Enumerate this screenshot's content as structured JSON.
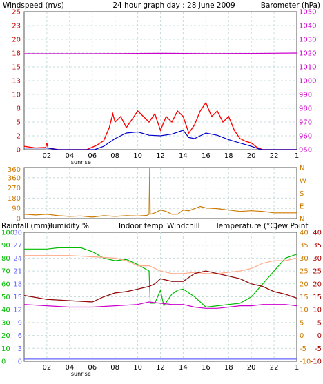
{
  "colors": {
    "wind": "#ff0000",
    "wind_avg": "#0000cc",
    "baro": "#cc00cc",
    "dir": "#cc7a00",
    "rain": "#6666ff",
    "humidity": "#00bb00",
    "indoor": "#ffaa88",
    "windchill": "#00cccc",
    "temp": "#aa0000",
    "dew": "#cc00cc",
    "grid": "#c8dcdc",
    "frame": "#555555",
    "left_axis": "#cc0000",
    "right_axis": "#cc00cc",
    "temp_axis": "#aa0000",
    "dir_axis": "#cc7a00"
  },
  "header": {
    "wind_label": "Windspeed (m/s)",
    "title": "24 hour graph day : 28 June 2009",
    "baro_label": "Barometer (hPa)"
  },
  "x_labels": [
    "02",
    "04",
    "06",
    "08",
    "10",
    "12",
    "14",
    "16",
    "18",
    "20",
    "22",
    "1"
  ],
  "sunrise_label": "sunrise",
  "panel_top": {
    "wind_ticks": [
      "0",
      "2",
      "5",
      "8",
      "10",
      "13",
      "15",
      "18",
      "20",
      "23",
      "25"
    ],
    "baro_ticks": [
      "950",
      "960",
      "970",
      "980",
      "990",
      "1000",
      "1010",
      "1020",
      "1030",
      "1040",
      "1050"
    ]
  },
  "panel_mid": {
    "left_ticks": [
      "0",
      "90",
      "180",
      "270",
      "360",
      "360"
    ],
    "dir_letters": [
      "N",
      "W",
      "S",
      "E",
      "N"
    ]
  },
  "panel_bot": {
    "legend": {
      "rainfall": "Rainfall (mm)",
      "humidity": "Humidity %",
      "indoor": "Indoor temp",
      "windchill": "Windchill",
      "temperature": "Temperature (°C)",
      "dewpoint": "Dew Point"
    },
    "rain_ticks": [
      "0",
      "3",
      "6",
      "9",
      "12",
      "15",
      "18",
      "21",
      "24",
      "27",
      "30"
    ],
    "hum_ticks": [
      "0",
      "10",
      "20",
      "30",
      "40",
      "50",
      "60",
      "70",
      "80",
      "90",
      "100"
    ],
    "temp_ticks": [
      "-10",
      "-5",
      "0",
      "5",
      "10",
      "15",
      "20",
      "25",
      "30",
      "35",
      "40"
    ]
  },
  "chart_data": [
    {
      "type": "line",
      "title": "24 hour graph day : 28 June 2009",
      "x_unit": "hour",
      "xlim": [
        0,
        24
      ],
      "y_left": {
        "label": "Windspeed (m/s)",
        "range": [
          0,
          25
        ]
      },
      "y_right": {
        "label": "Barometer (hPa)",
        "range": [
          950,
          1050
        ]
      },
      "series": [
        {
          "name": "Barometer (hPa)",
          "axis": "right",
          "points": [
            [
              0,
              1019.5
            ],
            [
              4,
              1019.5
            ],
            [
              8,
              1019.6
            ],
            [
              12,
              1019.8
            ],
            [
              16,
              1019.6
            ],
            [
              20,
              1019.7
            ],
            [
              24,
              1020
            ]
          ]
        },
        {
          "name": "Windspeed (m/s)",
          "axis": "left",
          "points": [
            [
              0,
              0.6
            ],
            [
              1,
              0.3
            ],
            [
              1.9,
              0.4
            ],
            [
              2,
              1.2
            ],
            [
              2.1,
              0.3
            ],
            [
              3,
              0
            ],
            [
              5.5,
              0
            ],
            [
              6.4,
              0.8
            ],
            [
              7,
              1.6
            ],
            [
              7.5,
              4
            ],
            [
              7.8,
              6.5
            ],
            [
              8,
              5
            ],
            [
              8.5,
              6
            ],
            [
              9,
              4
            ],
            [
              9.5,
              5.5
            ],
            [
              10,
              7
            ],
            [
              10.5,
              6
            ],
            [
              11,
              5
            ],
            [
              11.5,
              6.5
            ],
            [
              12,
              3.5
            ],
            [
              12.5,
              6
            ],
            [
              13,
              5
            ],
            [
              13.5,
              7
            ],
            [
              14,
              6
            ],
            [
              14.5,
              3
            ],
            [
              15,
              4.5
            ],
            [
              15.5,
              7
            ],
            [
              16,
              8.5
            ],
            [
              16.5,
              6
            ],
            [
              17,
              7
            ],
            [
              17.5,
              5
            ],
            [
              18,
              6
            ],
            [
              18.5,
              3.5
            ],
            [
              19,
              2
            ],
            [
              19.5,
              1.5
            ],
            [
              20,
              1.2
            ],
            [
              20.5,
              0.4
            ],
            [
              21,
              0
            ],
            [
              24,
              0
            ]
          ]
        },
        {
          "name": "Wind average (m/s)",
          "axis": "left",
          "points": [
            [
              0,
              0.3
            ],
            [
              2,
              0.3
            ],
            [
              3,
              0
            ],
            [
              6.2,
              0
            ],
            [
              7,
              0.6
            ],
            [
              8,
              2
            ],
            [
              9,
              3
            ],
            [
              10,
              3.2
            ],
            [
              11,
              2.6
            ],
            [
              12,
              2.5
            ],
            [
              13,
              2.8
            ],
            [
              14,
              3.5
            ],
            [
              14.5,
              2.2
            ],
            [
              15,
              2
            ],
            [
              16,
              3
            ],
            [
              17,
              2.6
            ],
            [
              18,
              1.8
            ],
            [
              19,
              1.2
            ],
            [
              20,
              0.6
            ],
            [
              20.7,
              0.1
            ],
            [
              21,
              0
            ],
            [
              24,
              0
            ]
          ]
        }
      ]
    },
    {
      "type": "line",
      "x_unit": "hour",
      "xlim": [
        0,
        24
      ],
      "y_left": {
        "range": [
          0,
          360
        ]
      },
      "y_right": {
        "ticks": [
          "N",
          "W",
          "S",
          "E",
          "N"
        ]
      },
      "series": [
        {
          "name": "Wind direction (°)",
          "points": [
            [
              0,
              30
            ],
            [
              1,
              25
            ],
            [
              2,
              30
            ],
            [
              3,
              20
            ],
            [
              4,
              15
            ],
            [
              5,
              18
            ],
            [
              6,
              10
            ],
            [
              7,
              20
            ],
            [
              8,
              15
            ],
            [
              9,
              20
            ],
            [
              10,
              18
            ],
            [
              10.8,
              22
            ],
            [
              11,
              30
            ],
            [
              11.05,
              360
            ],
            [
              11.1,
              30
            ],
            [
              11.5,
              40
            ],
            [
              12,
              60
            ],
            [
              12.5,
              50
            ],
            [
              13,
              30
            ],
            [
              13.5,
              30
            ],
            [
              14,
              60
            ],
            [
              14.5,
              55
            ],
            [
              15,
              70
            ],
            [
              15.5,
              85
            ],
            [
              16,
              75
            ],
            [
              17,
              70
            ],
            [
              18,
              60
            ],
            [
              19,
              50
            ],
            [
              20,
              55
            ],
            [
              21,
              50
            ],
            [
              22,
              40
            ],
            [
              24,
              40
            ]
          ]
        }
      ]
    },
    {
      "type": "line",
      "x_unit": "hour",
      "xlim": [
        0,
        24
      ],
      "y_left_rain": {
        "label": "Rainfall (mm)",
        "range": [
          0,
          30
        ]
      },
      "y_left_humidity": {
        "label": "Humidity %",
        "range": [
          0,
          100
        ]
      },
      "y_right_temp": {
        "label": "Temperature (°C)",
        "range": [
          -10,
          40
        ]
      },
      "series": [
        {
          "name": "Rainfall (mm)",
          "axis": "rain",
          "points": [
            [
              0,
              0.5
            ],
            [
              24,
              0.5
            ]
          ]
        },
        {
          "name": "Humidity %",
          "axis": "humidity",
          "points": [
            [
              0,
              87
            ],
            [
              2,
              87
            ],
            [
              3,
              88
            ],
            [
              4,
              88
            ],
            [
              5,
              88
            ],
            [
              6,
              85
            ],
            [
              7,
              80
            ],
            [
              8,
              78
            ],
            [
              9,
              79
            ],
            [
              10,
              75
            ],
            [
              11,
              70
            ],
            [
              11.1,
              45
            ],
            [
              11.5,
              45
            ],
            [
              12,
              55
            ],
            [
              12.3,
              43
            ],
            [
              13,
              52
            ],
            [
              13.5,
              55
            ],
            [
              14,
              56
            ],
            [
              15,
              50
            ],
            [
              16,
              42
            ],
            [
              17,
              43
            ],
            [
              18,
              44
            ],
            [
              19,
              45
            ],
            [
              20,
              50
            ],
            [
              21,
              60
            ],
            [
              22,
              70
            ],
            [
              23,
              80
            ],
            [
              24,
              83
            ]
          ]
        },
        {
          "name": "Indoor temp",
          "axis": "temp",
          "points": [
            [
              0,
              31
            ],
            [
              2,
              31
            ],
            [
              4,
              31
            ],
            [
              6,
              30.5
            ],
            [
              8,
              30
            ],
            [
              9,
              29
            ],
            [
              10,
              27
            ],
            [
              11,
              27
            ],
            [
              12,
              25
            ],
            [
              13,
              24
            ],
            [
              14,
              24
            ],
            [
              15,
              24.5
            ],
            [
              16,
              24
            ],
            [
              17,
              24
            ],
            [
              18,
              24.5
            ],
            [
              19,
              25
            ],
            [
              20,
              26
            ],
            [
              21,
              28
            ],
            [
              22,
              29
            ],
            [
              23,
              29
            ],
            [
              24,
              30
            ]
          ]
        },
        {
          "name": "Windchill",
          "axis": "temp",
          "points": [
            [
              0,
              15.5
            ],
            [
              2,
              14
            ],
            [
              4,
              13.5
            ],
            [
              6,
              13
            ],
            [
              7,
              15
            ],
            [
              8,
              16.5
            ],
            [
              9,
              17
            ],
            [
              10,
              18
            ],
            [
              11,
              19
            ],
            [
              11.5,
              20
            ],
            [
              12,
              22
            ],
            [
              13,
              21
            ],
            [
              14,
              21
            ],
            [
              15,
              24
            ],
            [
              16,
              25
            ],
            [
              17,
              24
            ],
            [
              18,
              23
            ],
            [
              19,
              22
            ],
            [
              20,
              20
            ],
            [
              21,
              19
            ],
            [
              22,
              17
            ],
            [
              23,
              16
            ],
            [
              24,
              14.5
            ]
          ]
        },
        {
          "name": "Temperature (°C)",
          "axis": "temp",
          "points": [
            [
              0,
              15.5
            ],
            [
              2,
              14
            ],
            [
              4,
              13.5
            ],
            [
              6,
              13
            ],
            [
              7,
              15
            ],
            [
              8,
              16.5
            ],
            [
              9,
              17
            ],
            [
              10,
              18
            ],
            [
              11,
              19
            ],
            [
              11.5,
              20
            ],
            [
              12,
              22
            ],
            [
              13,
              21
            ],
            [
              14,
              21
            ],
            [
              15,
              24
            ],
            [
              16,
              25
            ],
            [
              17,
              24
            ],
            [
              18,
              23
            ],
            [
              19,
              22
            ],
            [
              20,
              20
            ],
            [
              21,
              19
            ],
            [
              22,
              17
            ],
            [
              23,
              16
            ],
            [
              24,
              14.5
            ]
          ]
        },
        {
          "name": "Dew Point",
          "axis": "temp",
          "points": [
            [
              0,
              12
            ],
            [
              2,
              11.5
            ],
            [
              4,
              11
            ],
            [
              6,
              11
            ],
            [
              8,
              11.5
            ],
            [
              10,
              12
            ],
            [
              11,
              13
            ],
            [
              12,
              12.5
            ],
            [
              13,
              12
            ],
            [
              14,
              12
            ],
            [
              15,
              11
            ],
            [
              16,
              10.5
            ],
            [
              17,
              10.5
            ],
            [
              18,
              11
            ],
            [
              19,
              11.5
            ],
            [
              20,
              11.5
            ],
            [
              21,
              12
            ],
            [
              22,
              12
            ],
            [
              23,
              12
            ],
            [
              24,
              11.5
            ]
          ]
        }
      ]
    }
  ]
}
